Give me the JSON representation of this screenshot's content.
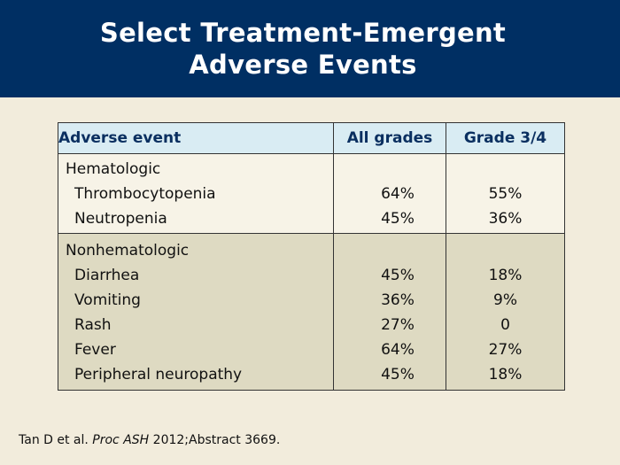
{
  "slide": {
    "title_line1": "Select Treatment-Emergent",
    "title_line2": "Adverse Events"
  },
  "table": {
    "headers": [
      "Adverse event",
      "All grades",
      "Grade 3/4"
    ],
    "groups": [
      {
        "label": "Hematologic",
        "rows": [
          {
            "event": "Thrombocytopenia",
            "all_grades": "64%",
            "grade_3_4": "55%"
          },
          {
            "event": "Neutropenia",
            "all_grades": "45%",
            "grade_3_4": "36%"
          }
        ]
      },
      {
        "label": "Nonhematologic",
        "rows": [
          {
            "event": "Diarrhea",
            "all_grades": "45%",
            "grade_3_4": "18%"
          },
          {
            "event": "Vomiting",
            "all_grades": "36%",
            "grade_3_4": "9%"
          },
          {
            "event": "Rash",
            "all_grades": "27%",
            "grade_3_4": "0"
          },
          {
            "event": "Fever",
            "all_grades": "64%",
            "grade_3_4": "27%"
          },
          {
            "event": "Peripheral neuropathy",
            "all_grades": "45%",
            "grade_3_4": "18%"
          }
        ]
      }
    ]
  },
  "citation": {
    "authors": "Tan D et al.",
    "journal": "Proc ASH",
    "details": "2012;Abstract 3669."
  },
  "colors": {
    "header_bg": "#002f63",
    "page_bg": "#f2ecdc",
    "table_header_bg": "#d9ecf3",
    "group2_bg": "#dedac2"
  }
}
